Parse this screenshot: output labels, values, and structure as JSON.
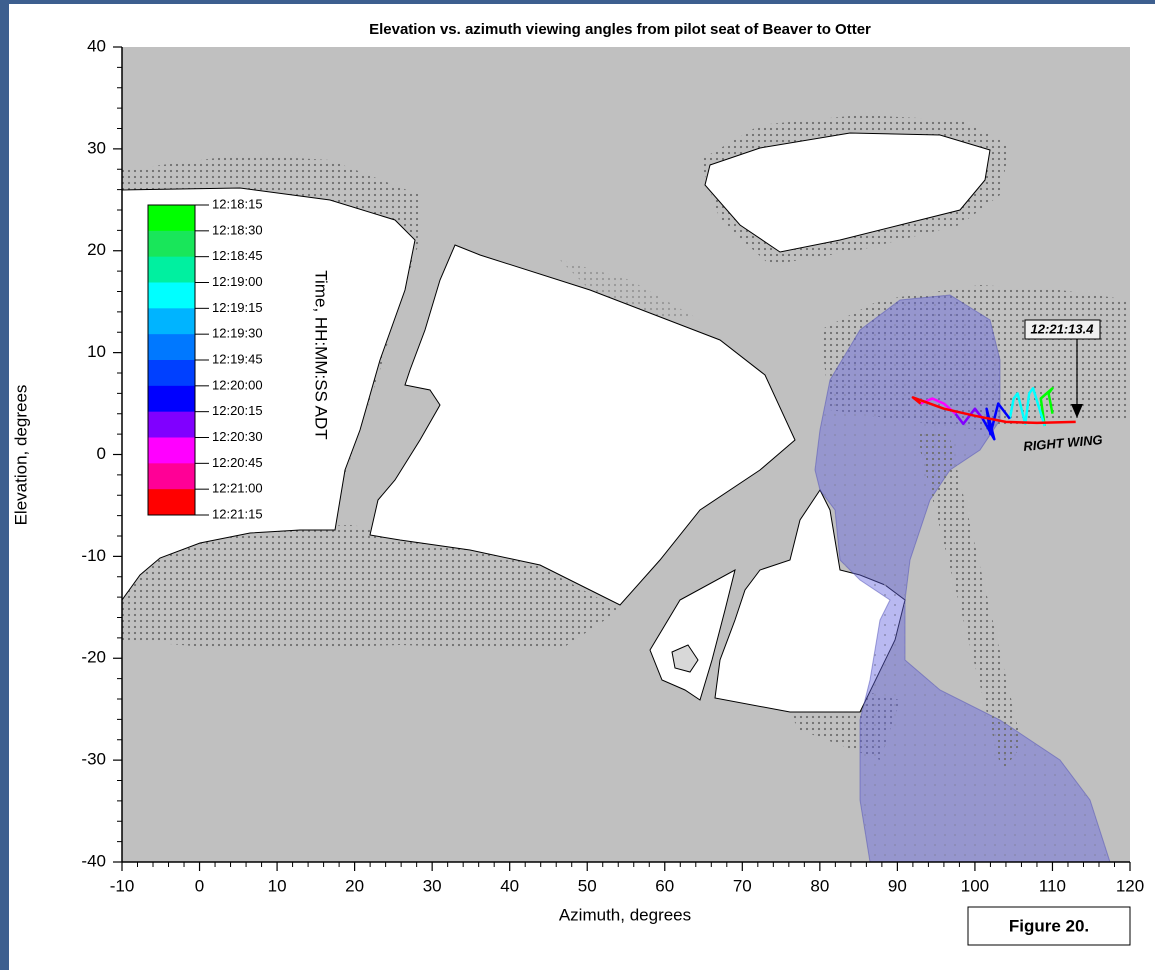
{
  "chart_data": {
    "type": "line",
    "title": "Elevation vs. azimuth viewing angles from pilot seat of Beaver to Otter",
    "x_label": "Azimuth, degrees",
    "y_label": "Elevation, degrees",
    "xlim": [
      -10,
      120
    ],
    "ylim": [
      -40,
      40
    ],
    "xticks": [
      -10,
      0,
      10,
      20,
      30,
      40,
      50,
      60,
      70,
      80,
      90,
      100,
      110,
      120
    ],
    "yticks": [
      -40,
      -30,
      -20,
      -10,
      0,
      10,
      20,
      30,
      40
    ],
    "colorbar": {
      "title": "Time, HH:MM:SS ADT",
      "labels": [
        "12:18:15",
        "12:18:30",
        "12:18:45",
        "12:19:00",
        "12:19:15",
        "12:19:30",
        "12:19:45",
        "12:20:00",
        "12:20:15",
        "12:20:30",
        "12:20:45",
        "12:21:00",
        "12:21:15"
      ],
      "colors": [
        "#00ff00",
        "#19e65a",
        "#00f0a0",
        "#00ffff",
        "#00b4ff",
        "#0078ff",
        "#0040ff",
        "#0000ff",
        "#8000ff",
        "#ff00ff",
        "#ff0096",
        "#ff0000"
      ]
    },
    "series": [
      {
        "color": "#00ff00",
        "x": [
          110,
          109.5,
          110,
          108.5,
          109
        ],
        "y": [
          4,
          6,
          6.5,
          5.5,
          2.8
        ]
      },
      {
        "color": "#00ffff",
        "x": [
          109,
          107.5,
          107,
          106.5,
          105.5,
          105,
          104.5
        ],
        "y": [
          2.8,
          6.5,
          6,
          3,
          6,
          5.5,
          3.5
        ]
      },
      {
        "color": "#0000ff",
        "x": [
          104.5,
          103,
          102,
          101.5,
          102.5,
          101
        ],
        "y": [
          3.5,
          5,
          2,
          4.5,
          1.5,
          3.5
        ]
      },
      {
        "color": "#8000ff",
        "x": [
          101,
          100,
          98.5,
          97.5
        ],
        "y": [
          3.5,
          4.5,
          3,
          4
        ]
      },
      {
        "color": "#ff00ff",
        "x": [
          97.5,
          96,
          94.5,
          93
        ],
        "y": [
          4,
          5,
          5.5,
          5
        ]
      },
      {
        "color": "#ff0000",
        "x": [
          93,
          92,
          96,
          100,
          104,
          108,
          113
        ],
        "y": [
          5,
          5.6,
          4.5,
          3.8,
          3.2,
          3.1,
          3.2
        ]
      }
    ],
    "annotations": [
      "12:21:13.4",
      "RIGHT WING"
    ],
    "figure_label": "Figure 20."
  }
}
